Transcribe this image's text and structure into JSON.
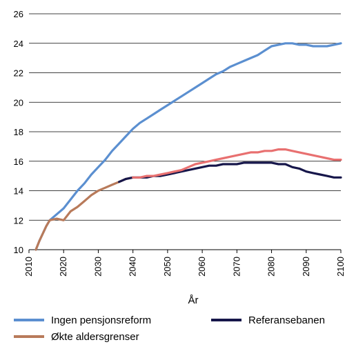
{
  "chart_data": {
    "type": "line",
    "title": "",
    "xlabel": "År",
    "ylabel": "",
    "xlim": [
      2010,
      2100
    ],
    "ylim": [
      10,
      26
    ],
    "xticks": [
      "2010",
      "2020",
      "2030",
      "2040",
      "2050",
      "2060",
      "2070",
      "2080",
      "2090",
      "2100"
    ],
    "yticks": [
      "10",
      "12",
      "14",
      "16",
      "18",
      "20",
      "22",
      "24",
      "26"
    ],
    "grid": "horizontal",
    "legend_position": "bottom",
    "series": [
      {
        "name": "Ingen pensjonsreform",
        "color": "#5b8fd0",
        "x": [
          2012,
          2013,
          2014,
          2015,
          2016,
          2018,
          2020,
          2022,
          2024,
          2026,
          2028,
          2030,
          2032,
          2034,
          2036,
          2038,
          2040,
          2042,
          2044,
          2046,
          2048,
          2050,
          2052,
          2054,
          2056,
          2058,
          2060,
          2062,
          2064,
          2066,
          2068,
          2070,
          2072,
          2074,
          2076,
          2078,
          2080,
          2082,
          2084,
          2086,
          2088,
          2090,
          2092,
          2094,
          2096,
          2098,
          2100
        ],
        "y": [
          10.0,
          10.6,
          11.1,
          11.6,
          12.0,
          12.4,
          12.8,
          13.4,
          14.0,
          14.5,
          15.1,
          15.6,
          16.1,
          16.7,
          17.2,
          17.7,
          18.2,
          18.6,
          18.9,
          19.2,
          19.5,
          19.8,
          20.1,
          20.4,
          20.7,
          21.0,
          21.3,
          21.6,
          21.9,
          22.1,
          22.4,
          22.6,
          22.8,
          23.0,
          23.2,
          23.5,
          23.8,
          23.9,
          24.0,
          24.0,
          23.9,
          23.9,
          23.8,
          23.8,
          23.8,
          23.9,
          24.0
        ]
      },
      {
        "name": "Økte aldersgrenser",
        "color": "#b87a5a",
        "x": [
          2012,
          2013,
          2014,
          2015,
          2016,
          2018,
          2020,
          2022,
          2024,
          2026,
          2028,
          2030,
          2032,
          2034,
          2036,
          2038,
          2040
        ],
        "y": [
          10.0,
          10.6,
          11.1,
          11.6,
          12.0,
          12.1,
          12.0,
          12.6,
          12.9,
          13.3,
          13.7,
          14.0,
          14.2,
          14.4,
          14.6,
          14.8,
          14.9
        ]
      },
      {
        "name": "Referansebanen",
        "color": "#16164a",
        "x": [
          2036,
          2038,
          2040,
          2042,
          2044,
          2046,
          2048,
          2050,
          2052,
          2054,
          2056,
          2058,
          2060,
          2062,
          2064,
          2066,
          2068,
          2070,
          2072,
          2074,
          2076,
          2078,
          2080,
          2082,
          2084,
          2086,
          2088,
          2090,
          2092,
          2094,
          2096,
          2098,
          2100
        ],
        "y": [
          14.6,
          14.8,
          14.9,
          14.9,
          14.9,
          15.0,
          15.0,
          15.1,
          15.2,
          15.3,
          15.4,
          15.5,
          15.6,
          15.7,
          15.7,
          15.8,
          15.8,
          15.8,
          15.9,
          15.9,
          15.9,
          15.9,
          15.9,
          15.8,
          15.8,
          15.6,
          15.5,
          15.3,
          15.2,
          15.1,
          15.0,
          14.9,
          14.9
        ]
      },
      {
        "name": "",
        "color": "#e87070",
        "x": [
          2040,
          2042,
          2044,
          2046,
          2048,
          2050,
          2052,
          2054,
          2056,
          2058,
          2060,
          2062,
          2064,
          2066,
          2068,
          2070,
          2072,
          2074,
          2076,
          2078,
          2080,
          2082,
          2084,
          2086,
          2088,
          2090,
          2092,
          2094,
          2096,
          2098,
          2100
        ],
        "y": [
          14.9,
          14.9,
          15.0,
          15.0,
          15.1,
          15.2,
          15.3,
          15.4,
          15.6,
          15.8,
          15.9,
          16.0,
          16.1,
          16.2,
          16.3,
          16.4,
          16.5,
          16.6,
          16.6,
          16.7,
          16.7,
          16.8,
          16.8,
          16.7,
          16.6,
          16.5,
          16.4,
          16.3,
          16.2,
          16.1,
          16.1
        ]
      }
    ]
  },
  "legend": {
    "items": [
      {
        "label": "Ingen pensjonsreform",
        "color": "#5b8fd0"
      },
      {
        "label": "Referansebanen",
        "color": "#16164a"
      },
      {
        "label": "Økte aldersgrenser",
        "color": "#b87a5a"
      }
    ]
  }
}
